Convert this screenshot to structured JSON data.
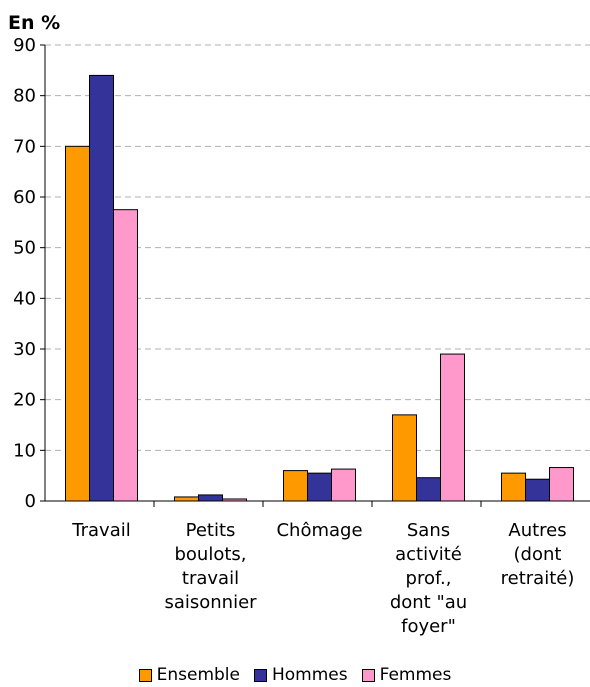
{
  "chart_data": {
    "type": "bar",
    "ylabel": "En %",
    "ylim": [
      0,
      90
    ],
    "yticks": [
      0,
      10,
      20,
      30,
      40,
      50,
      60,
      70,
      80,
      90
    ],
    "grid": true,
    "legend_position": "bottom",
    "categories": [
      [
        "Travail"
      ],
      [
        "Petits",
        "boulots,",
        "travail",
        "saisonnier"
      ],
      [
        "Chômage"
      ],
      [
        "Sans",
        "activité",
        "prof.,",
        "dont \"au",
        "foyer\""
      ],
      [
        "Autres",
        "(dont",
        "retraité)"
      ]
    ],
    "series": [
      {
        "name": "Ensemble",
        "color": "#ff9900",
        "values": [
          70,
          0.8,
          6,
          17,
          5.5
        ]
      },
      {
        "name": "Hommes",
        "color": "#333399",
        "values": [
          84,
          1.2,
          5.5,
          4.6,
          4.3
        ]
      },
      {
        "name": "Femmes",
        "color": "#ff99cc",
        "values": [
          57.5,
          0.4,
          6.3,
          29,
          6.6
        ]
      }
    ]
  }
}
